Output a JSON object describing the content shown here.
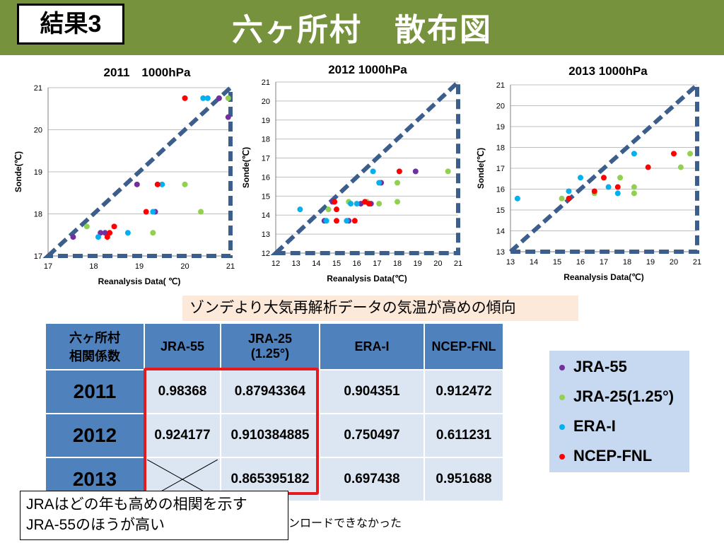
{
  "header": {
    "tag": "結果3",
    "title": "六ヶ所村　散布図"
  },
  "note": "ゾンデより大気再解析データの気温が高めの傾向",
  "table": {
    "corner": [
      "六ヶ所村",
      "相関係数"
    ],
    "columns": [
      "JRA-55",
      "JRA-25",
      "(1.25°)",
      "ERA-I",
      "NCEP-FNL"
    ],
    "rows": [
      {
        "year": "2011",
        "values": [
          "0.98368",
          "0.87943364",
          "0.904351",
          "0.912472"
        ]
      },
      {
        "year": "2012",
        "values": [
          "0.924177",
          "0.910384885",
          "0.750497",
          "0.611231"
        ]
      },
      {
        "year": "2013",
        "values": [
          "",
          "0.865395182",
          "0.697438",
          "0.951688"
        ]
      }
    ]
  },
  "legend": [
    {
      "label": "JRA-55",
      "color": "#7030a0"
    },
    {
      "label": "JRA-25(1.25°)",
      "color": "#92d050"
    },
    {
      "label": "ERA-I",
      "color": "#00b0f0"
    },
    {
      "label": "NCEP-FNL",
      "color": "#ff0000"
    }
  ],
  "bottom_text": "ンロードできなかった",
  "callout": [
    "JRAはどの年も高めの相関を示す",
    "JRA-55のほうが高い"
  ],
  "chart_data": [
    {
      "type": "scatter",
      "title": "2011　1000hPa",
      "xlabel": "Reanalysis Data( ℃)",
      "ylabel": "Sonde(℃)",
      "xlim": [
        17,
        21
      ],
      "ylim": [
        17,
        21
      ],
      "xticks": [
        17,
        18,
        19,
        20,
        21
      ],
      "yticks": [
        17,
        18,
        19,
        20,
        21
      ],
      "series": [
        {
          "name": "JRA-55",
          "color": "#7030a0",
          "points": [
            [
              17.55,
              17.45
            ],
            [
              18.15,
              17.55
            ],
            [
              18.25,
              17.55
            ],
            [
              18.95,
              18.7
            ],
            [
              19.35,
              18.05
            ],
            [
              20.75,
              20.75
            ],
            [
              20.95,
              20.3
            ]
          ]
        },
        {
          "name": "JRA-25(1.25°)",
          "color": "#92d050",
          "points": [
            [
              17.85,
              17.7
            ],
            [
              19.3,
              17.55
            ],
            [
              20.0,
              18.7
            ],
            [
              20.35,
              18.05
            ],
            [
              20.95,
              20.75
            ]
          ]
        },
        {
          "name": "ERA-I",
          "color": "#00b0f0",
          "points": [
            [
              18.1,
              17.45
            ],
            [
              18.75,
              17.55
            ],
            [
              19.3,
              18.05
            ],
            [
              19.5,
              18.7
            ],
            [
              20.4,
              20.75
            ],
            [
              20.5,
              20.75
            ]
          ]
        },
        {
          "name": "NCEP-FNL",
          "color": "#ff0000",
          "points": [
            [
              18.3,
              17.45
            ],
            [
              18.35,
              17.55
            ],
            [
              18.45,
              17.7
            ],
            [
              19.15,
              18.05
            ],
            [
              19.4,
              18.7
            ],
            [
              20.0,
              20.75
            ]
          ]
        }
      ]
    },
    {
      "type": "scatter",
      "title": "2012 1000hPa",
      "xlabel": "Reanalysis Data(℃)",
      "ylabel": "Sonde(℃)",
      "xlim": [
        12,
        21
      ],
      "ylim": [
        12,
        21
      ],
      "xticks": [
        12,
        13,
        14,
        15,
        16,
        17,
        18,
        19,
        20,
        21
      ],
      "yticks": [
        12,
        13,
        14,
        15,
        16,
        17,
        18,
        19,
        20,
        21
      ],
      "series": [
        {
          "name": "JRA-55",
          "color": "#7030a0",
          "points": [
            [
              14.4,
              13.7
            ],
            [
              14.8,
              14.7
            ],
            [
              15.6,
              13.7
            ],
            [
              16.2,
              14.6
            ],
            [
              16.7,
              14.6
            ],
            [
              17.2,
              15.7
            ],
            [
              18.9,
              16.3
            ]
          ]
        },
        {
          "name": "JRA-25(1.25°)",
          "color": "#92d050",
          "points": [
            [
              14.6,
              14.3
            ],
            [
              15.6,
              14.7
            ],
            [
              16.5,
              14.7
            ],
            [
              17.1,
              14.6
            ],
            [
              18.0,
              14.7
            ],
            [
              18.0,
              15.7
            ],
            [
              20.5,
              16.3
            ]
          ]
        },
        {
          "name": "ERA-I",
          "color": "#00b0f0",
          "points": [
            [
              13.2,
              14.3
            ],
            [
              14.5,
              13.7
            ],
            [
              15.7,
              14.6
            ],
            [
              15.5,
              13.7
            ],
            [
              16.0,
              14.6
            ],
            [
              16.8,
              16.3
            ],
            [
              17.1,
              15.7
            ]
          ]
        },
        {
          "name": "NCEP-FNL",
          "color": "#ff0000",
          "points": [
            [
              14.9,
              14.7
            ],
            [
              15.0,
              13.7
            ],
            [
              15.0,
              14.3
            ],
            [
              15.9,
              13.7
            ],
            [
              16.4,
              14.7
            ],
            [
              16.6,
              14.6
            ],
            [
              18.1,
              16.3
            ]
          ]
        }
      ]
    },
    {
      "type": "scatter",
      "title": "2013 1000hPa",
      "xlabel": "Reanalysis Data(℃)",
      "ylabel": "Sonde(℃)",
      "xlim": [
        13,
        21
      ],
      "ylim": [
        13,
        21
      ],
      "xticks": [
        13,
        14,
        15,
        16,
        17,
        18,
        19,
        20,
        21
      ],
      "yticks": [
        13,
        14,
        15,
        16,
        17,
        18,
        19,
        20,
        21
      ],
      "series": [
        {
          "name": "JRA-25(1.25°)",
          "color": "#92d050",
          "points": [
            [
              15.2,
              15.55
            ],
            [
              16.6,
              15.8
            ],
            [
              17.7,
              16.55
            ],
            [
              18.3,
              15.8
            ],
            [
              18.3,
              16.1
            ],
            [
              20.3,
              17.05
            ],
            [
              20.7,
              17.7
            ]
          ]
        },
        {
          "name": "ERA-I",
          "color": "#00b0f0",
          "points": [
            [
              13.3,
              15.55
            ],
            [
              15.5,
              15.9
            ],
            [
              16.0,
              16.55
            ],
            [
              17.2,
              16.1
            ],
            [
              17.6,
              15.8
            ],
            [
              18.3,
              17.7
            ]
          ]
        },
        {
          "name": "NCEP-FNL",
          "color": "#ff0000",
          "points": [
            [
              15.5,
              15.55
            ],
            [
              16.6,
              15.9
            ],
            [
              17.0,
              16.55
            ],
            [
              17.6,
              16.1
            ],
            [
              18.9,
              17.05
            ],
            [
              20.0,
              17.7
            ]
          ]
        }
      ]
    }
  ]
}
